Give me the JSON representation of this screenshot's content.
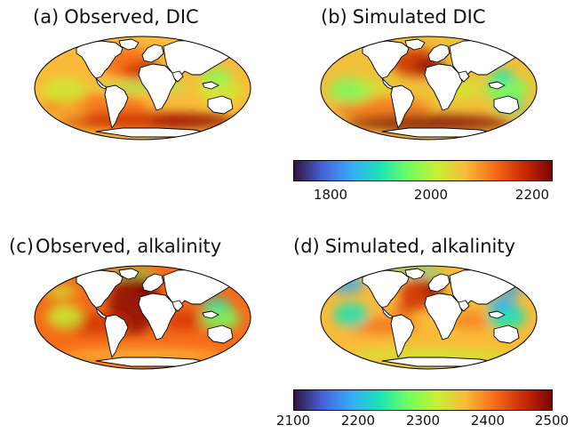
{
  "panels": [
    {
      "label": "(a)",
      "title": "Observed, DIC"
    },
    {
      "label": "(b)",
      "title": "Simulated DIC"
    },
    {
      "label": "(c)",
      "title": "Observed, alkalinity"
    },
    {
      "label": "(d)",
      "title": "Simulated, alkalinity"
    }
  ],
  "colorbars": {
    "dic": {
      "ticks": [
        "1800",
        "2000",
        "2200"
      ]
    },
    "alk": {
      "ticks": [
        "2100",
        "2200",
        "2300",
        "2400",
        "2500"
      ]
    }
  },
  "colors": {
    "land": "#ffffff",
    "coast": "#000000",
    "colormap": [
      "#30123b",
      "#4662d7",
      "#36aaf9",
      "#1ae4b6",
      "#72fe5e",
      "#c8ef34",
      "#faba39",
      "#f66b19",
      "#ca2a04",
      "#7a0403"
    ]
  }
}
